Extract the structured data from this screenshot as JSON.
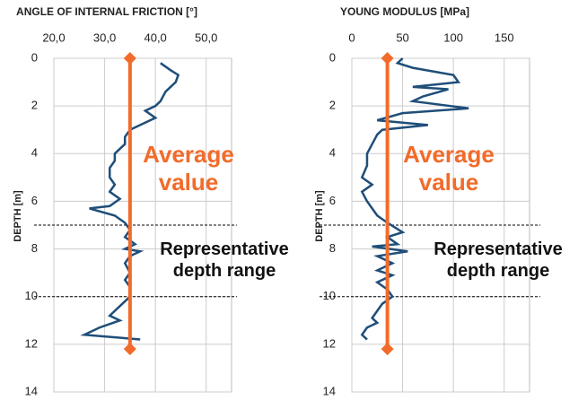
{
  "chart_data": [
    {
      "type": "profile",
      "title": "ANGLE OF INTERNAL FRICTION [°]",
      "y_label": "DEPTH [m]",
      "xlim": [
        20,
        55
      ],
      "xticks": [
        {
          "value": 20,
          "label": "20,0"
        },
        {
          "value": 30,
          "label": "30,0"
        },
        {
          "value": 40,
          "label": "40,0"
        },
        {
          "value": 50,
          "label": "50,0"
        }
      ],
      "ylim": [
        0,
        14
      ],
      "yticks": [
        0,
        2,
        4,
        6,
        8,
        10,
        12,
        14
      ],
      "grid": true,
      "series": [
        {
          "color": "#1f4e79",
          "x": [
            41,
            43,
            44.5,
            44,
            42,
            41,
            40,
            38,
            40,
            37,
            35,
            34,
            34,
            33,
            32,
            32,
            31,
            31,
            32,
            31,
            33,
            31,
            27,
            32,
            34,
            35,
            34,
            36,
            34,
            37,
            35,
            34,
            35,
            34,
            35,
            35,
            33,
            31,
            33,
            29,
            26,
            37
          ],
          "y": [
            0.2,
            0.5,
            0.7,
            1,
            1.4,
            1.8,
            2,
            2.2,
            2.5,
            2.8,
            3,
            3.3,
            3.6,
            3.8,
            4,
            4.3,
            4.6,
            5,
            5.3,
            5.6,
            5.9,
            6.2,
            6.3,
            6.6,
            6.9,
            7.2,
            7.5,
            7.8,
            8,
            8.1,
            8.3,
            8.6,
            9,
            9.3,
            9.6,
            10,
            10.4,
            10.8,
            11,
            11.3,
            11.6,
            11.8
          ]
        },
        {
          "color": "#f26b2a",
          "x": [
            35,
            35
          ],
          "y": [
            0,
            12.2
          ]
        }
      ],
      "range": [
        7,
        10
      ],
      "annotations": [
        {
          "text": "Average value",
          "color": "#f26b2a"
        },
        {
          "text": "Representative depth range",
          "color": "#111111"
        }
      ]
    },
    {
      "type": "profile",
      "title": "YOUNG MODULUS [MPa]",
      "y_label": "DEPTH [m]",
      "xlim": [
        0,
        175
      ],
      "xticks": [
        0,
        50,
        100,
        150
      ],
      "ylim": [
        0,
        14
      ],
      "yticks": [
        0,
        2,
        4,
        6,
        8,
        10,
        12,
        14
      ],
      "grid": true,
      "series": [
        {
          "color": "#1f4e79",
          "x": [
            50,
            45,
            60,
            100,
            105,
            60,
            95,
            70,
            60,
            115,
            50,
            25,
            75,
            30,
            25,
            20,
            15,
            15,
            10,
            20,
            10,
            15,
            20,
            25,
            35,
            50,
            35,
            45,
            20,
            55,
            25,
            40,
            25,
            40,
            25,
            35,
            40,
            30,
            25,
            20,
            25,
            15,
            10,
            15
          ],
          "y": [
            0,
            0.2,
            0.4,
            0.7,
            1,
            1.2,
            1.3,
            1.6,
            1.8,
            2.1,
            2.3,
            2.6,
            2.8,
            3,
            3.2,
            3.6,
            4,
            4.5,
            5,
            5.3,
            5.6,
            6,
            6.3,
            6.6,
            6.9,
            7.3,
            7.5,
            7.8,
            7.9,
            8.1,
            8.3,
            8.6,
            8.9,
            9.1,
            9.4,
            9.7,
            10,
            10.3,
            10.6,
            10.9,
            11.1,
            11.3,
            11.6,
            11.8
          ]
        },
        {
          "color": "#f26b2a",
          "x": [
            35,
            35
          ],
          "y": [
            0,
            12.2
          ]
        }
      ],
      "range": [
        7,
        10
      ],
      "annotations": [
        {
          "text": "Average value",
          "color": "#f26b2a"
        },
        {
          "text": "Representative depth range",
          "color": "#111111"
        }
      ]
    }
  ]
}
